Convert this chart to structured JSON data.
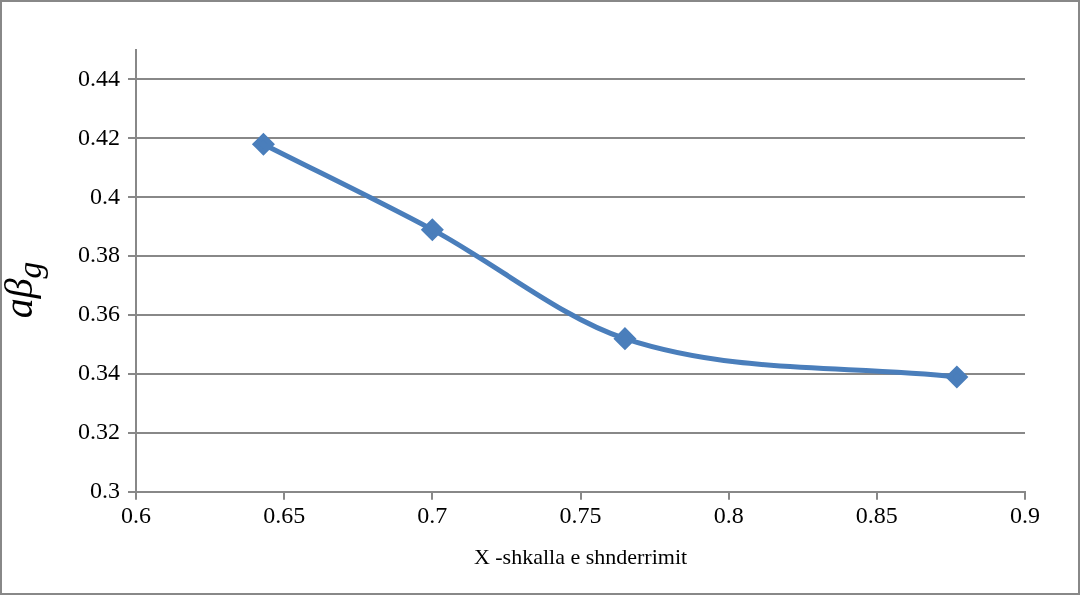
{
  "chart_data": {
    "type": "line",
    "xlabel": "X -shkalla e shnderrimit",
    "ylabel": "aβ$_{g}$",
    "x": [
      0.643,
      0.7,
      0.765,
      0.877
    ],
    "series": [
      {
        "color": "#4a7ebb",
        "values": [
          0.418,
          0.389,
          0.352,
          0.339
        ]
      }
    ],
    "xlim": [
      0.6,
      0.9
    ],
    "xticks": [
      0.6,
      0.65,
      0.7,
      0.75,
      0.8,
      0.85,
      0.9
    ],
    "ylim": [
      0.3,
      0.45
    ],
    "yticks": [
      0.3,
      0.32,
      0.34,
      0.36,
      0.38,
      0.4,
      0.42,
      0.44
    ],
    "grid": "y",
    "legend": false,
    "marker": "diamond",
    "line_style": "solid"
  }
}
